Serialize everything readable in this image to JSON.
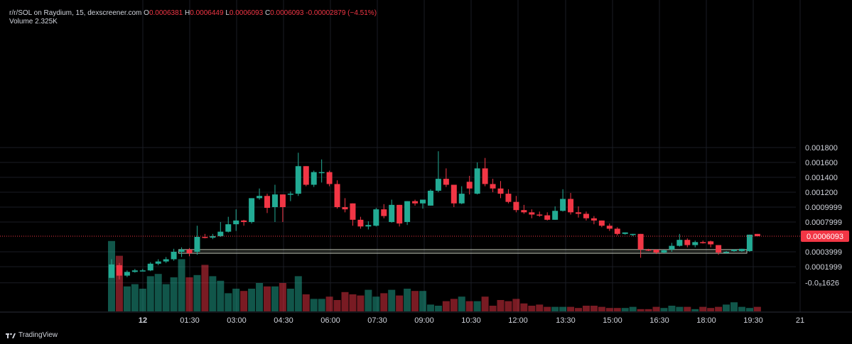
{
  "header": {
    "symbol": "r/r/SOL on Raydium, 15, dexscreener.com",
    "open_label": "O",
    "open": "0.0006381",
    "high_label": "H",
    "high": "0.0006449",
    "low_label": "L",
    "low": "0.0006093",
    "close_label": "C",
    "close": "0.0006093",
    "change": "-0.00002879 (−4.51%)",
    "volume_label": "Volume",
    "volume": "2.325K"
  },
  "footer": {
    "brand": "TradingView",
    "logo_icon": "tradingview-logo-icon"
  },
  "colors": {
    "up": "#22ab94",
    "down": "#f23645",
    "background": "#000000"
  },
  "chart_data": {
    "type": "candlestick",
    "interval": "15",
    "y_ticks": [
      "0.001800",
      "0.001600",
      "0.001400",
      "0.001200",
      "0.0009999",
      "0.0007999",
      "0.0003999",
      "0.0001999",
      "-0.0₈1626"
    ],
    "y_tick_values": [
      0.0018,
      0.0016,
      0.0014,
      0.0012,
      0.0009999,
      0.0007999,
      0.0003999,
      0.0001999,
      -1.626e-05
    ],
    "ylim": [
      -0.0001,
      0.0019
    ],
    "x_ticks": [
      "12",
      "01:30",
      "03:00",
      "04:30",
      "06:00",
      "07:30",
      "09:00",
      "10:30",
      "12:00",
      "13:30",
      "15:00",
      "16:30",
      "18:00",
      "19:30",
      "21"
    ],
    "last_price_label": "0.0006093",
    "last_price": 0.0006093,
    "zone": {
      "low": 0.00038,
      "high": 0.00043,
      "start_index": 9,
      "end_index": 80
    },
    "grid": true,
    "candles": [
      [
        5e-05,
        0.00023,
        0.0003,
        7e-05
      ],
      [
        0.00022,
        8e-05,
        0.00025,
        3e-05
      ],
      [
        8e-05,
        0.00013,
        0.00015,
        6e-05
      ],
      [
        0.00013,
        0.00015,
        0.00017,
        0.00012
      ],
      [
        0.00015,
        0.00015,
        0.00017,
        0.00014
      ],
      [
        0.00015,
        0.00024,
        0.00026,
        0.00014
      ],
      [
        0.00024,
        0.00027,
        0.0003,
        0.00022
      ],
      [
        0.00027,
        0.0003,
        0.00033,
        0.00025
      ],
      [
        0.0003,
        0.0004,
        0.00044,
        0.00028
      ],
      [
        0.0004,
        0.00043,
        0.00046,
        0.00033
      ],
      [
        0.00043,
        0.00038,
        0.00045,
        0.00034
      ],
      [
        0.0004,
        0.0006,
        0.00075,
        0.00036
      ],
      [
        0.0006,
        0.00059,
        0.00064,
        0.00058
      ],
      [
        0.00059,
        0.00061,
        0.00064,
        0.00057
      ],
      [
        0.00061,
        0.00067,
        0.0008,
        0.0006
      ],
      [
        0.00067,
        0.00077,
        0.00087,
        0.00066
      ],
      [
        0.00077,
        0.00082,
        0.00097,
        0.00068
      ],
      [
        0.00082,
        0.0008,
        0.00083,
        0.00075
      ],
      [
        0.0008,
        0.00112,
        0.00112,
        0.00078
      ],
      [
        0.00112,
        0.00115,
        0.00125,
        0.0011
      ],
      [
        0.00115,
        0.00099,
        0.00118,
        0.00092
      ],
      [
        0.001,
        0.00117,
        0.0013,
        0.0008
      ],
      [
        0.00117,
        0.001,
        0.00117,
        0.0008
      ],
      [
        0.00117,
        0.00118,
        0.00121,
        0.00108
      ],
      [
        0.00118,
        0.00155,
        0.00173,
        0.00115
      ],
      [
        0.00155,
        0.0013,
        0.00155,
        0.00128
      ],
      [
        0.0013,
        0.00147,
        0.00149,
        0.00127
      ],
      [
        0.00147,
        0.00147,
        0.00164,
        0.00133
      ],
      [
        0.00147,
        0.00131,
        0.00149,
        0.00128
      ],
      [
        0.00131,
        0.001,
        0.00136,
        0.00098
      ],
      [
        0.001,
        0.00097,
        0.00112,
        0.00093
      ],
      [
        0.00105,
        0.00083,
        0.00105,
        0.00075
      ],
      [
        0.00083,
        0.00074,
        0.00087,
        0.00071
      ],
      [
        0.00074,
        0.00076,
        0.00081,
        0.0007
      ],
      [
        0.00075,
        0.00097,
        0.00099,
        0.00074
      ],
      [
        0.00097,
        0.00088,
        0.00104,
        0.00085
      ],
      [
        0.0008,
        0.00103,
        0.0011,
        0.00079
      ],
      [
        0.00103,
        0.00078,
        0.00103,
        0.00074
      ],
      [
        0.0008,
        0.00108,
        0.00108,
        0.00076
      ],
      [
        0.00108,
        0.00105,
        0.0011,
        0.00102
      ],
      [
        0.00105,
        0.0011,
        0.001,
        0.00098
      ],
      [
        0.00102,
        0.00122,
        0.00124,
        0.00104
      ],
      [
        0.00122,
        0.00138,
        0.00175,
        0.0012
      ],
      [
        0.00138,
        0.0013,
        0.00152,
        0.00127
      ],
      [
        0.0013,
        0.00105,
        0.0013,
        0.001
      ],
      [
        0.00105,
        0.00118,
        0.00128,
        0.00104
      ],
      [
        0.00134,
        0.00125,
        0.00142,
        0.00117
      ],
      [
        0.00118,
        0.00152,
        0.0016,
        0.00117
      ],
      [
        0.00152,
        0.00131,
        0.00166,
        0.00128
      ],
      [
        0.00131,
        0.00125,
        0.00138,
        0.0012
      ],
      [
        0.00125,
        0.00118,
        0.00135,
        0.00112
      ],
      [
        0.00118,
        0.00107,
        0.00124,
        0.00105
      ],
      [
        0.00107,
        0.00096,
        0.00115,
        0.00093
      ],
      [
        0.00096,
        0.00093,
        0.00103,
        0.00091
      ],
      [
        0.00093,
        0.0009,
        0.00097,
        0.00085
      ],
      [
        0.0009,
        0.00089,
        0.00094,
        0.00087
      ],
      [
        0.00089,
        0.00083,
        0.00093,
        0.00082
      ],
      [
        0.00083,
        0.00095,
        0.00101,
        0.00083
      ],
      [
        0.00095,
        0.00111,
        0.00124,
        0.00094
      ],
      [
        0.00111,
        0.00093,
        0.00119,
        0.0009
      ],
      [
        0.00093,
        0.00091,
        0.00101,
        0.00086
      ],
      [
        0.00091,
        0.00085,
        0.00094,
        0.00082
      ],
      [
        0.00085,
        0.00082,
        0.00088,
        0.00077
      ],
      [
        0.00082,
        0.00075,
        0.00082,
        0.00073
      ],
      [
        0.00075,
        0.00071,
        0.00078,
        0.00068
      ],
      [
        0.00071,
        0.00064,
        0.00073,
        0.00062
      ],
      [
        0.00064,
        0.00066,
        0.00066,
        0.00063
      ],
      [
        0.00064,
        0.00064,
        0.00064,
        0.00061
      ],
      [
        0.00064,
        0.00043,
        0.00064,
        0.00032
      ],
      [
        0.00043,
        0.00042,
        0.00044,
        0.00041
      ],
      [
        0.00043,
        0.00039,
        0.00043,
        0.00037
      ],
      [
        0.00039,
        0.00042,
        0.00043,
        0.00038
      ],
      [
        0.00043,
        0.00048,
        0.00052,
        0.0004
      ],
      [
        0.00048,
        0.00056,
        0.00064,
        0.00047
      ],
      [
        0.00056,
        0.00049,
        0.00058,
        0.00046
      ],
      [
        0.00049,
        0.00053,
        0.00055,
        0.00046
      ],
      [
        0.00053,
        0.00052,
        0.00055,
        0.00051
      ],
      [
        0.00054,
        0.0005,
        0.00055,
        0.00046
      ],
      [
        0.00049,
        0.00039,
        0.00049,
        0.00036
      ],
      [
        0.00039,
        0.0004,
        0.00041,
        0.00038
      ],
      [
        0.00041,
        0.00043,
        0.00043,
        0.0004
      ],
      [
        0.00041,
        0.00044,
        0.00044,
        0.0004
      ],
      [
        0.00041,
        0.00063,
        0.00063,
        0.0004
      ],
      [
        0.00064,
        0.00061,
        0.00064,
        0.00061
      ]
    ],
    "volume_ratios": [
      0.62,
      0.49,
      0.22,
      0.24,
      0.2,
      0.31,
      0.33,
      0.24,
      0.3,
      0.46,
      0.3,
      0.32,
      0.41,
      0.31,
      0.27,
      0.16,
      0.2,
      0.18,
      0.2,
      0.25,
      0.22,
      0.22,
      0.25,
      0.2,
      0.31,
      0.15,
      0.11,
      0.11,
      0.13,
      0.1,
      0.17,
      0.15,
      0.14,
      0.19,
      0.13,
      0.16,
      0.19,
      0.14,
      0.2,
      0.18,
      0.18,
      0.06,
      0.05,
      0.09,
      0.11,
      0.13,
      0.09,
      0.09,
      0.13,
      0.05,
      0.1,
      0.09,
      0.11,
      0.07,
      0.05,
      0.06,
      0.04,
      0.04,
      0.04,
      0.04,
      0.03,
      0.05,
      0.05,
      0.04,
      0.03,
      0.03,
      0.03,
      0.04,
      0.02,
      0.02,
      0.04,
      0.03,
      0.05,
      0.04,
      0.04,
      0.02,
      0.04,
      0.03,
      0.04,
      0.06,
      0.08,
      0.04,
      0.03,
      0.04,
      0.02
    ]
  }
}
